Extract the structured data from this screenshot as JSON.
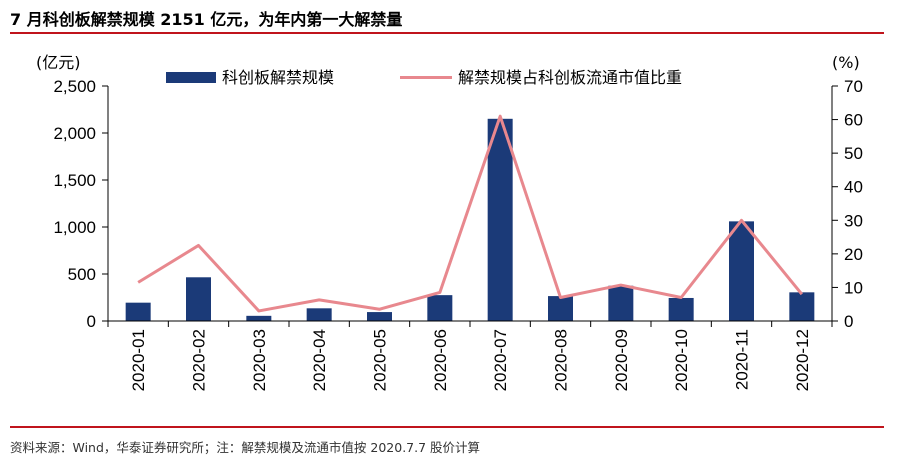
{
  "header": {
    "title": "7 月科创板解禁规模 2151 亿元，为年内第一大解禁量"
  },
  "footer": {
    "source": "资料来源：Wind，华泰证券研究所；注：解禁规模及流通市值按 2020.7.7 股价计算"
  },
  "chart_data": {
    "type": "bar+line",
    "categories": [
      "2020-01",
      "2020-02",
      "2020-03",
      "2020-04",
      "2020-05",
      "2020-06",
      "2020-07",
      "2020-08",
      "2020-09",
      "2020-10",
      "2020-11",
      "2020-12"
    ],
    "series": [
      {
        "name": "科创板解禁规模",
        "type": "bar",
        "axis": "left",
        "color": "#1b3a78",
        "values": [
          195,
          465,
          55,
          135,
          95,
          275,
          2151,
          265,
          375,
          245,
          1060,
          305
        ]
      },
      {
        "name": "解禁规模占科创板流通市值比重",
        "type": "line",
        "axis": "right",
        "color": "#e8888e",
        "values": [
          11.5,
          22.5,
          3,
          6.3,
          3.5,
          8.5,
          61,
          7,
          10.7,
          7,
          30,
          8
        ]
      }
    ],
    "left_axis": {
      "unit": "(亿元)",
      "ylim": [
        0,
        2500
      ],
      "ticks": [
        0,
        500,
        1000,
        1500,
        2000,
        2500
      ],
      "tick_labels": [
        "0",
        "500",
        "1,000",
        "1,500",
        "2,000",
        "2,500"
      ]
    },
    "right_axis": {
      "unit": "(%)",
      "ylim": [
        0,
        70
      ],
      "ticks": [
        0,
        10,
        20,
        30,
        40,
        50,
        60,
        70
      ],
      "tick_labels": [
        "0",
        "10",
        "20",
        "30",
        "40",
        "50",
        "60",
        "70"
      ]
    },
    "legend_position": "top-center",
    "grid": false
  }
}
